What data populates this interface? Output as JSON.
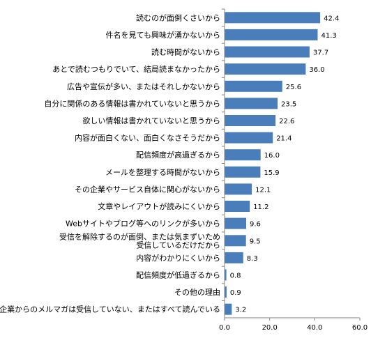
{
  "chart_data": {
    "type": "bar",
    "orientation": "horizontal",
    "categories": [
      "読むのが面倒くさいから",
      "件名を見ても興味が湧かないから",
      "読む時間がないから",
      "あとで読むつもりでいて、結局読まなかったから",
      "広告や宣伝が多い、またはそれしかないから",
      "自分に関係のある情報は書かれていないと思うから",
      "欲しい情報は書かれていないと思うから",
      "内容が面白くない、面白くなさそうだから",
      "配信頻度が高過ぎるから",
      "メールを整理する時間がないから",
      "その企業やサービス自体に関心がないから",
      "文章やレイアウトが読みにくいから",
      "Webサイトやブログ等へのリンクが多いから",
      "受信を解除するのが面倒、または気まずいため受信しているだけだから",
      "内容がわかりにくいから",
      "配信頻度が低過ぎるから",
      "その他の理由",
      "企業からのメルマガは受信していない、またはすべて読んでいる"
    ],
    "category_lines": [
      [
        "読むのが面倒くさいから"
      ],
      [
        "件名を見ても興味が湧かないから"
      ],
      [
        "読む時間がないから"
      ],
      [
        "あとで読むつもりでいて、結局読まなかったから"
      ],
      [
        "広告や宣伝が多い、またはそれしかないから"
      ],
      [
        "自分に関係のある情報は書かれていないと思うから"
      ],
      [
        "欲しい情報は書かれていないと思うから"
      ],
      [
        "内容が面白くない、面白くなさそうだから"
      ],
      [
        "配信頻度が高過ぎるから"
      ],
      [
        "メールを整理する時間がないから"
      ],
      [
        "その企業やサービス自体に関心がないから"
      ],
      [
        "文章やレイアウトが読みにくいから"
      ],
      [
        "Webサイトやブログ等へのリンクが多いから"
      ],
      [
        "受信を解除するのが面倒、または気まずいため",
        "受信しているだけだから"
      ],
      [
        "内容がわかりにくいから"
      ],
      [
        "配信頻度が低過ぎるから"
      ],
      [
        "その他の理由"
      ],
      [
        "企業からのメルマガは受信していない、またはすべて読んでいる"
      ]
    ],
    "values": [
      42.4,
      41.3,
      37.7,
      36.0,
      25.6,
      23.5,
      22.6,
      21.4,
      16.0,
      15.9,
      12.1,
      11.2,
      9.6,
      9.5,
      8.3,
      0.8,
      0.9,
      3.2
    ],
    "value_labels": [
      "42.4",
      "41.3",
      "37.7",
      "36.0",
      "25.6",
      "23.5",
      "22.6",
      "21.4",
      "16.0",
      "15.9",
      "12.1",
      "11.2",
      "9.6",
      "9.5",
      "8.3",
      "0.8",
      "0.9",
      "3.2"
    ],
    "xlim": [
      0,
      60
    ],
    "x_ticks": [
      0,
      20,
      40,
      60
    ],
    "x_tick_labels": [
      "0.0",
      "20.0",
      "40.0",
      "60.0"
    ],
    "title": "",
    "xlabel": "",
    "ylabel": "",
    "grid": false,
    "legend": "none",
    "bar_color": "#4a7ebb",
    "axis_color": "#868686"
  }
}
